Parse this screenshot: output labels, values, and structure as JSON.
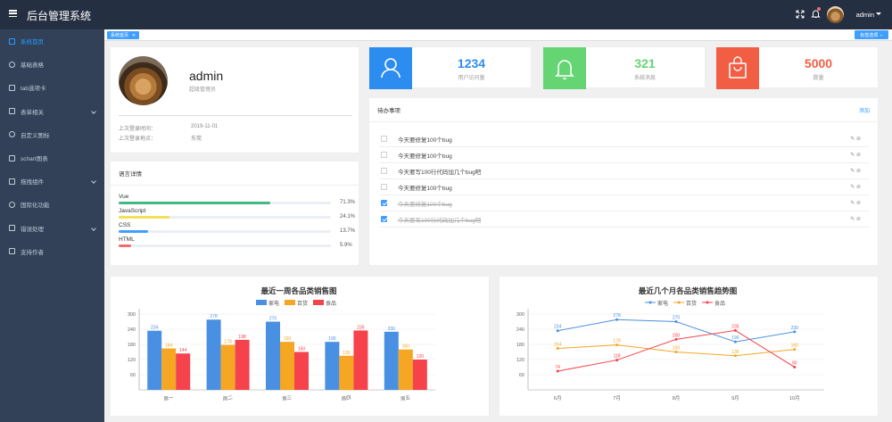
{
  "header": {
    "title": "后台管理系统",
    "username": "admin"
  },
  "sidebar": {
    "items": [
      {
        "label": "系统首页",
        "icon": "home-icon",
        "active": true,
        "arrow": false
      },
      {
        "label": "基础表格",
        "icon": "table-icon",
        "active": false,
        "arrow": false
      },
      {
        "label": "tab选项卡",
        "icon": "tab-icon",
        "active": false,
        "arrow": false
      },
      {
        "label": "表单相关",
        "icon": "form-icon",
        "active": false,
        "arrow": true
      },
      {
        "label": "自定义图标",
        "icon": "emoji-icon",
        "active": false,
        "arrow": false
      },
      {
        "label": "schart图表",
        "icon": "chart-icon",
        "active": false,
        "arrow": false
      },
      {
        "label": "拖拽组件",
        "icon": "drag-icon",
        "active": false,
        "arrow": true
      },
      {
        "label": "国际化功能",
        "icon": "globe-icon",
        "active": false,
        "arrow": false
      },
      {
        "label": "错误处理",
        "icon": "warning-icon",
        "active": false,
        "arrow": true
      },
      {
        "label": "支持作者",
        "icon": "support-icon",
        "active": false,
        "arrow": false
      }
    ]
  },
  "tags": {
    "current": "系统首页",
    "close_label": "标签选项"
  },
  "user_card": {
    "name": "admin",
    "role": "超级管理员",
    "last_login_label": "上次登录时间：",
    "last_login_value": "2019-11-01",
    "last_place_label": "上次登录地点：",
    "last_place_value": "东莞"
  },
  "lang_card": {
    "title": "语言详情",
    "items": [
      {
        "name": "Vue",
        "percent": 71.3,
        "label": "71.3%",
        "color": "#42b983"
      },
      {
        "name": "JavaScript",
        "percent": 24.1,
        "label": "24.1%",
        "color": "#f1e05a"
      },
      {
        "name": "CSS",
        "percent": 13.7,
        "label": "13.7%",
        "color": "#409eff"
      },
      {
        "name": "HTML",
        "percent": 5.9,
        "label": "5.9%",
        "color": "#f56c6c"
      }
    ]
  },
  "stats": [
    {
      "value": "1234",
      "label": "用户访问量",
      "color": "#2d8cf0",
      "icon": "user-icon"
    },
    {
      "value": "321",
      "label": "系统消息",
      "color": "#64d572",
      "icon": "bell-icon"
    },
    {
      "value": "5000",
      "label": "数量",
      "color": "#f25e43",
      "icon": "bag-icon"
    }
  ],
  "todo": {
    "title": "待办事项",
    "add_label": "添加",
    "edit_label": "✎ ⊘",
    "items": [
      {
        "text": "今天要修复100个bug",
        "done": false
      },
      {
        "text": "今天要修复100个bug",
        "done": false
      },
      {
        "text": "今天要写100行代码加几个bug吧",
        "done": false
      },
      {
        "text": "今天要修复100个bug",
        "done": false
      },
      {
        "text": "今天要修复100个bug",
        "done": true
      },
      {
        "text": "今天要写100行代码加几个bug吧",
        "done": true
      }
    ]
  },
  "chart_data": [
    {
      "type": "bar",
      "title": "最近一周各品类销售图",
      "categories": [
        "周一",
        "周二",
        "周三",
        "周四",
        "周五"
      ],
      "ylim": [
        0,
        300
      ],
      "yticks": [
        60,
        120,
        180,
        240,
        300
      ],
      "legend_position": "top-center",
      "series": [
        {
          "name": "家电",
          "color": "#4a90e2",
          "values": [
            234,
            278,
            270,
            190,
            230
          ]
        },
        {
          "name": "百货",
          "color": "#f5a623",
          "values": [
            164,
            178,
            190,
            135,
            160
          ]
        },
        {
          "name": "食品",
          "color": "#f5424b",
          "values": [
            144,
            198,
            150,
            235,
            120
          ]
        }
      ]
    },
    {
      "type": "line",
      "title": "最近几个月各品类销售趋势图",
      "categories": [
        "6月",
        "7月",
        "8月",
        "9月",
        "10月"
      ],
      "ylim": [
        0,
        300
      ],
      "yticks": [
        60,
        120,
        180,
        240,
        300
      ],
      "legend_position": "top-center",
      "series": [
        {
          "name": "家电",
          "color": "#4a90e2",
          "values": [
            234,
            278,
            270,
            190,
            230
          ]
        },
        {
          "name": "百货",
          "color": "#f5a623",
          "values": [
            164,
            178,
            150,
            135,
            160
          ]
        },
        {
          "name": "食品",
          "color": "#f5424b",
          "values": [
            74,
            118,
            200,
            235,
            90
          ]
        }
      ]
    }
  ]
}
